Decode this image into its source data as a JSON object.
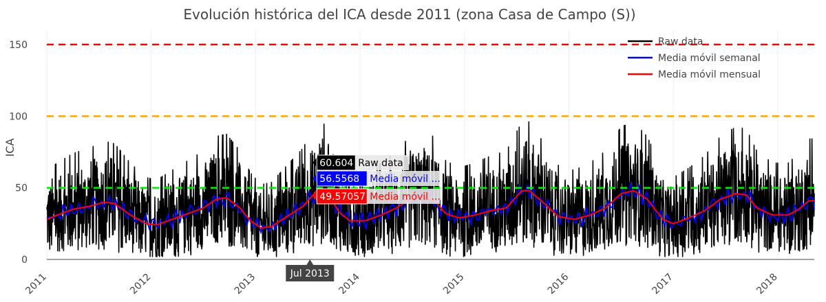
{
  "chart_data": {
    "type": "line",
    "title": "Evolución histórica del ICA desde 2011 (zona Casa de Campo (S))",
    "ylabel": "ICA",
    "xlabel": "",
    "xlim": [
      2011.0,
      2018.35
    ],
    "ylim": [
      0,
      160
    ],
    "yticks": [
      0,
      50,
      100,
      150
    ],
    "xticks": [
      {
        "x": 2011,
        "label": "2011"
      },
      {
        "x": 2012,
        "label": "2012"
      },
      {
        "x": 2013,
        "label": "2013"
      },
      {
        "x": 2014,
        "label": "2014"
      },
      {
        "x": 2015,
        "label": "2015"
      },
      {
        "x": 2016,
        "label": "2016"
      },
      {
        "x": 2017,
        "label": "2017"
      },
      {
        "x": 2018,
        "label": "2018"
      }
    ],
    "grid": true,
    "legend_position": "top-right",
    "thresholds": [
      {
        "y": 150,
        "color": "#ff0000"
      },
      {
        "y": 100,
        "color": "#ffa500"
      },
      {
        "y": 50,
        "color": "#00ee00"
      }
    ],
    "series": [
      {
        "name": "Raw data",
        "color": "#000000",
        "raw_min": 2,
        "raw_max": 97
      },
      {
        "name": "Media móvil semanal",
        "color": "#0000ff"
      },
      {
        "name": "Media móvil mensual",
        "color": "#ff0000",
        "points": [
          [
            2011.0,
            28
          ],
          [
            2011.1,
            31
          ],
          [
            2011.25,
            35
          ],
          [
            2011.4,
            37
          ],
          [
            2011.55,
            40
          ],
          [
            2011.65,
            39
          ],
          [
            2011.8,
            31
          ],
          [
            2011.95,
            25
          ],
          [
            2012.05,
            24
          ],
          [
            2012.2,
            28
          ],
          [
            2012.35,
            32
          ],
          [
            2012.5,
            36
          ],
          [
            2012.62,
            42
          ],
          [
            2012.72,
            43
          ],
          [
            2012.85,
            36
          ],
          [
            2012.95,
            27
          ],
          [
            2013.05,
            22
          ],
          [
            2013.15,
            23
          ],
          [
            2013.3,
            30
          ],
          [
            2013.45,
            37
          ],
          [
            2013.55,
            45
          ],
          [
            2013.6,
            49.6
          ],
          [
            2013.7,
            45
          ],
          [
            2013.8,
            33
          ],
          [
            2013.9,
            27
          ],
          [
            2014.05,
            27
          ],
          [
            2014.2,
            31
          ],
          [
            2014.35,
            36
          ],
          [
            2014.5,
            43
          ],
          [
            2014.62,
            44
          ],
          [
            2014.7,
            42
          ],
          [
            2014.82,
            32
          ],
          [
            2014.95,
            29
          ],
          [
            2015.1,
            31
          ],
          [
            2015.25,
            34
          ],
          [
            2015.4,
            36
          ],
          [
            2015.55,
            48
          ],
          [
            2015.62,
            48
          ],
          [
            2015.75,
            40
          ],
          [
            2015.9,
            30
          ],
          [
            2016.05,
            28
          ],
          [
            2016.2,
            31
          ],
          [
            2016.35,
            36
          ],
          [
            2016.5,
            46
          ],
          [
            2016.62,
            48
          ],
          [
            2016.75,
            42
          ],
          [
            2016.9,
            28
          ],
          [
            2017.0,
            25
          ],
          [
            2017.15,
            29
          ],
          [
            2017.3,
            34
          ],
          [
            2017.45,
            42
          ],
          [
            2017.6,
            46
          ],
          [
            2017.7,
            45
          ],
          [
            2017.8,
            36
          ],
          [
            2017.95,
            31
          ],
          [
            2018.1,
            31
          ],
          [
            2018.2,
            35
          ],
          [
            2018.3,
            41
          ],
          [
            2018.35,
            41
          ]
        ]
      }
    ],
    "hover": {
      "x_label": "Jul 2013",
      "x": 2013.52,
      "items": [
        {
          "value": "60.604",
          "label": "Raw data",
          "bg": "#000000",
          "fg": "#ffffff",
          "label_color": "#000000"
        },
        {
          "value": "56.5568",
          "label": "Media móvil ...",
          "bg": "#0000ff",
          "fg": "#ffffff",
          "label_color": "#0000ff"
        },
        {
          "value": "49.57057",
          "label": "Media móvil ...",
          "bg": "#ff0000",
          "fg": "#ffffff",
          "label_color": "#ff0000"
        }
      ]
    }
  }
}
